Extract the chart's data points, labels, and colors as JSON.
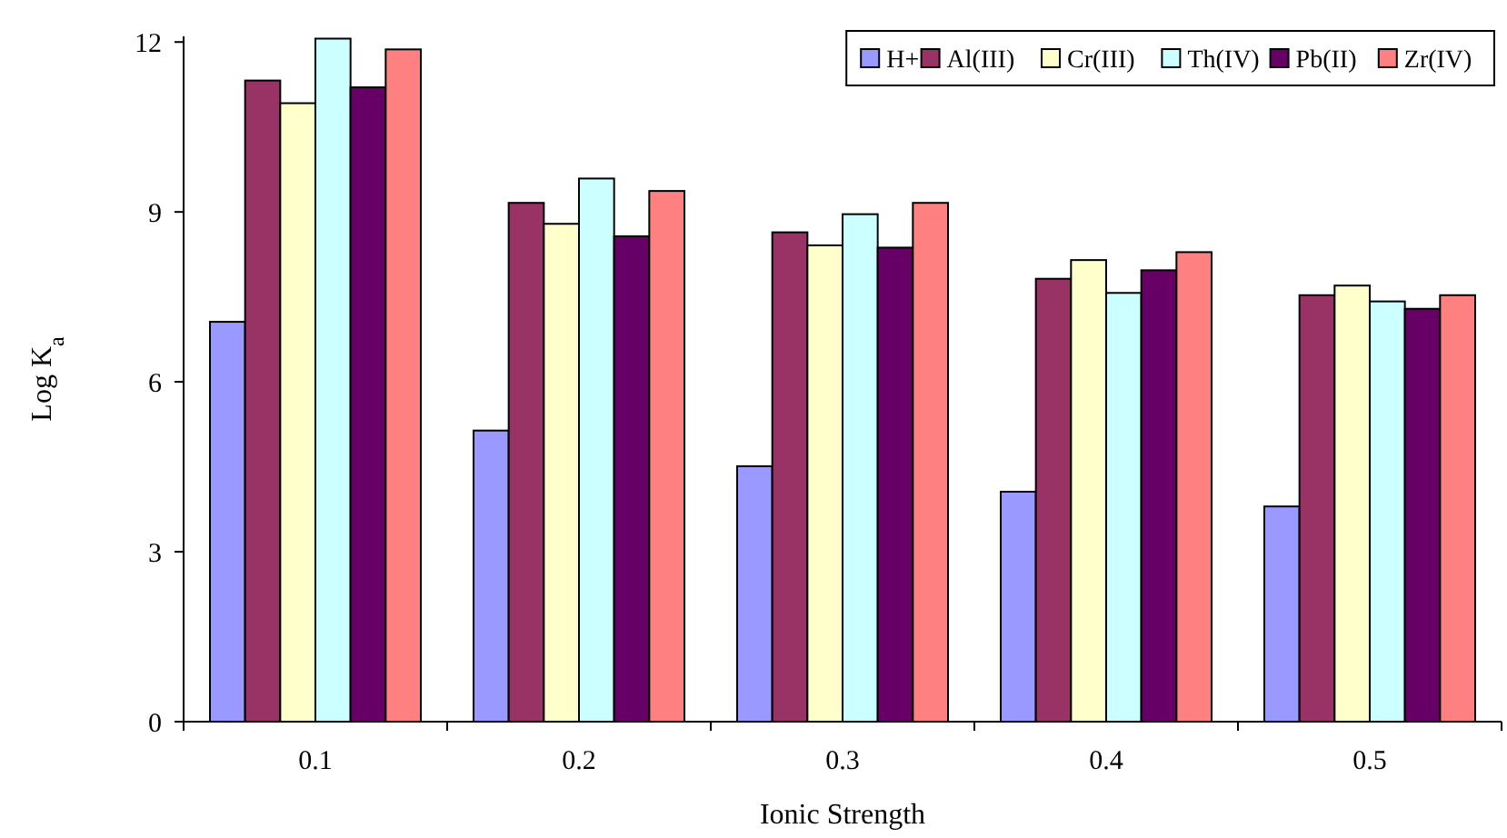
{
  "chart_data": {
    "type": "bar",
    "xlabel": "Ionic Strength",
    "ylabel": "Log K$_{a}$",
    "categories": [
      "0.1",
      "0.2",
      "0.3",
      "0.4",
      "0.5"
    ],
    "series": [
      {
        "name": "H+",
        "color": "#9999ff",
        "values": [
          7.06,
          5.14,
          4.51,
          4.06,
          3.8
        ]
      },
      {
        "name": "Al(III)",
        "color": "#993366",
        "values": [
          11.32,
          9.16,
          8.64,
          7.82,
          7.53
        ]
      },
      {
        "name": "Cr(III)",
        "color": "#ffffcc",
        "values": [
          10.92,
          8.79,
          8.41,
          8.15,
          7.7
        ]
      },
      {
        "name": "Th(IV)",
        "color": "#ccffff",
        "values": [
          12.06,
          9.59,
          8.96,
          7.57,
          7.42
        ]
      },
      {
        "name": "Pb(II)",
        "color": "#660066",
        "values": [
          11.2,
          8.57,
          8.37,
          7.97,
          7.29
        ]
      },
      {
        "name": "Zr(IV)",
        "color": "#ff8080",
        "values": [
          11.87,
          9.37,
          9.16,
          8.29,
          7.53
        ]
      }
    ],
    "ylim": [
      0,
      12.1
    ],
    "yticks": [
      0,
      3,
      6,
      9,
      12
    ],
    "grid": false,
    "legend": "top right"
  }
}
